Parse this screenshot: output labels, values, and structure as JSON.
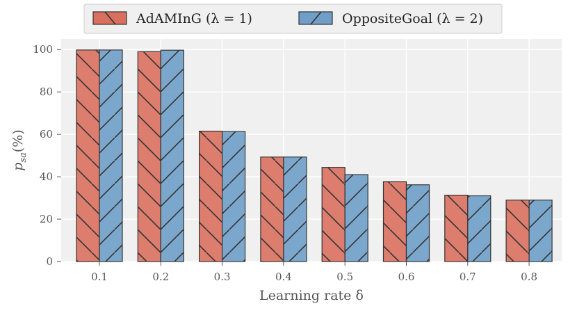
{
  "chart_data": {
    "type": "bar",
    "categories": [
      "0.1",
      "0.2",
      "0.3",
      "0.4",
      "0.5",
      "0.6",
      "0.7",
      "0.8"
    ],
    "series": [
      {
        "name": "AdAMInG (λ = 1)",
        "values": [
          99.8,
          99.0,
          61.5,
          49.3,
          44.4,
          37.7,
          31.3,
          29.0
        ],
        "color": "#d9705f",
        "hatch": "backslash"
      },
      {
        "name": "OppositeGoal (λ = 2)",
        "values": [
          99.8,
          99.7,
          61.3,
          49.3,
          41.0,
          36.2,
          31.0,
          29.0
        ],
        "color": "#6f9ec8",
        "hatch": "slash"
      }
    ],
    "xlabel": "Learning rate δ",
    "ylabel": "p_sa(%)",
    "ylim": [
      0,
      105
    ],
    "yticks": [
      0,
      20,
      40,
      60,
      80,
      100
    ],
    "grid": true,
    "background": "#f0f0f0",
    "legend_position": "top-center"
  }
}
